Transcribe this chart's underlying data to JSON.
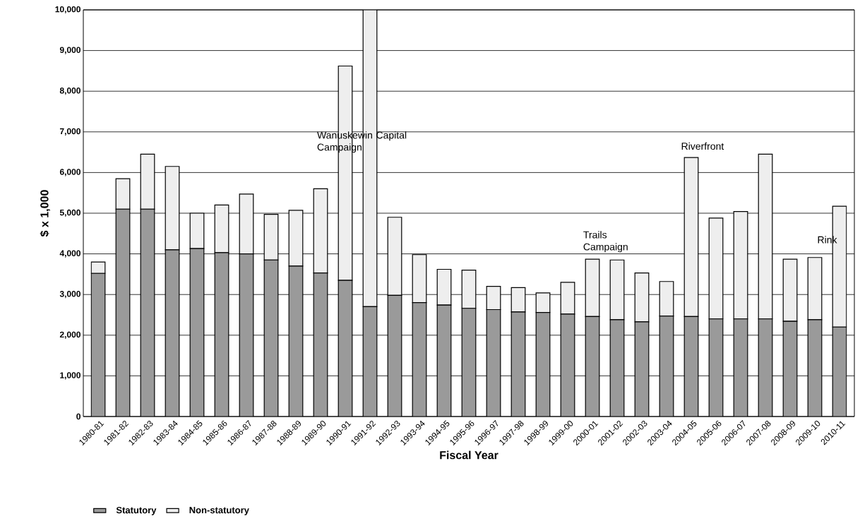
{
  "chart_data": {
    "type": "bar",
    "stacked": true,
    "xlabel": "Fiscal Year",
    "ylabel": "$ x 1,000",
    "categories": [
      "1980-81",
      "1981-82",
      "1982-83",
      "1983-84",
      "1984-85",
      "1985-86",
      "1986-87",
      "1987-88",
      "1988-89",
      "1989-90",
      "1990-91",
      "1991-92",
      "1992-93",
      "1993-94",
      "1994-95",
      "1995-96",
      "1996-97",
      "1997-98",
      "1998-99",
      "1999-00",
      "2000-01",
      "2001-02",
      "2002-03",
      "2003-04",
      "2004-05",
      "2005-06",
      "2006-07",
      "2007-08",
      "2008-09",
      "2009-10",
      "2010-11"
    ],
    "series": [
      {
        "name": "Statutory",
        "color": "#9a9a9a",
        "values": [
          3520,
          5100,
          5100,
          4100,
          4130,
          4030,
          4000,
          3850,
          3700,
          3530,
          3350,
          2700,
          2980,
          2800,
          2740,
          2660,
          2630,
          2570,
          2560,
          2520,
          2460,
          2380,
          2330,
          2470,
          2460,
          2400,
          2400,
          2400,
          2340,
          2380,
          2200
        ]
      },
      {
        "name": "Non-statutory",
        "color": "#eeeeee",
        "values": [
          280,
          750,
          1350,
          2050,
          870,
          1170,
          1470,
          1120,
          1370,
          2070,
          5270,
          7300,
          1920,
          1180,
          880,
          940,
          570,
          600,
          480,
          780,
          1410,
          1470,
          1200,
          850,
          3910,
          2480,
          2640,
          4050,
          1530,
          1530,
          2970
        ]
      }
    ],
    "ylim": [
      0,
      10000
    ],
    "yticks": [
      0,
      {
        "value": 1000,
        "label": "1,000"
      },
      {
        "value": 2000,
        "label": "2,000"
      },
      {
        "value": 3000,
        "label": "3,000"
      },
      {
        "value": 4000,
        "label": "4,000"
      },
      {
        "value": 5000,
        "label": "5,000"
      },
      {
        "value": 6000,
        "label": "6,000"
      },
      {
        "value": 7000,
        "label": "7,000"
      },
      {
        "value": 8000,
        "label": "8,000"
      },
      {
        "value": 9000,
        "label": "9,000"
      },
      {
        "value": 10000,
        "label": "10,000"
      }
    ],
    "grid": "y",
    "legend": "bottom left",
    "annotations": [
      {
        "text": "Wanuskewin Capital Campaign",
        "x": "1991-92",
        "y": 6750
      },
      "Trails Campaign",
      "Riverfront",
      {
        "text": "Rink",
        "x": "2010-11",
        "y": 4350
      }
    ]
  }
}
